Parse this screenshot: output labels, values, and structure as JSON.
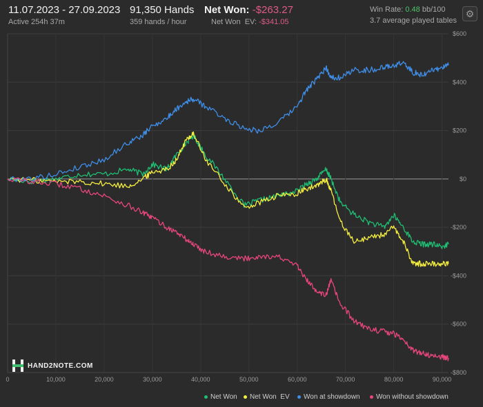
{
  "header": {
    "date_range": "11.07.2023 - 27.09.2023",
    "active_label": "Active 254h 37m",
    "hands": "91,350 Hands",
    "hands_per_hour": "359 hands / hour",
    "net_won_label": "Net Won:",
    "net_won_value": "-$263.27",
    "net_won_ev_label": "Net Won  EV:",
    "net_won_ev_value": "-$341.05",
    "win_rate_label": "Win Rate:",
    "win_rate_value": "0.48",
    "win_rate_unit": "bb/100",
    "avg_tables": "3.7 average played tables"
  },
  "icons": {
    "settings": "gear-icon",
    "logo": "hand2note-logo"
  },
  "logo_text": "HAND2NOTE.COM",
  "colors": {
    "net_won": "#1fbf73",
    "net_won_ev": "#f5ef3f",
    "won_showdown": "#3f8ee8",
    "won_without_showdown": "#e8467c",
    "negative": "#e05a8a",
    "positive": "#4fc36b"
  },
  "chart_data": {
    "type": "line",
    "xlabel": "",
    "ylabel": "",
    "xlim": [
      0,
      91350
    ],
    "ylim": [
      -800,
      600
    ],
    "x_ticks": [
      0,
      10000,
      20000,
      30000,
      40000,
      50000,
      60000,
      70000,
      80000,
      90000
    ],
    "x_tick_labels": [
      "0",
      "10,000",
      "20,000",
      "30,000",
      "40,000",
      "50,000",
      "60,000",
      "70,000",
      "80,000",
      "90,000"
    ],
    "y_ticks": [
      600,
      400,
      200,
      0,
      -200,
      -400,
      -600,
      -800
    ],
    "y_tick_labels": [
      "$600",
      "$400",
      "$200",
      "$0",
      "-$200",
      "-$400",
      "-$600",
      "-$800"
    ],
    "grid": true,
    "legend_position": "bottom-right",
    "series": [
      {
        "name": "Net Won",
        "color": "#1fbf73",
        "x": [
          0,
          5000,
          10000,
          15000,
          20000,
          25000,
          28000,
          30000,
          33000,
          35000,
          37000,
          38500,
          41000,
          45000,
          49000,
          52000,
          56000,
          60000,
          62000,
          64000,
          66000,
          67000,
          69000,
          72000,
          75000,
          78000,
          80000,
          82000,
          84000,
          86000,
          88000,
          90000,
          91350
        ],
        "y": [
          0,
          -10,
          0,
          20,
          20,
          40,
          20,
          60,
          40,
          100,
          150,
          180,
          100,
          0,
          -110,
          -90,
          -70,
          -50,
          -20,
          0,
          40,
          0,
          -100,
          -150,
          -180,
          -200,
          -150,
          -200,
          -260,
          -270,
          -270,
          -280,
          -270
        ]
      },
      {
        "name": "Net Won  EV",
        "color": "#f5ef3f",
        "x": [
          0,
          5000,
          10000,
          15000,
          20000,
          25000,
          28000,
          30000,
          33000,
          35000,
          37000,
          38500,
          41000,
          45000,
          49000,
          52000,
          56000,
          60000,
          62000,
          64000,
          66000,
          67000,
          69000,
          72000,
          75000,
          78000,
          80000,
          82000,
          84000,
          86000,
          88000,
          90000,
          91350
        ],
        "y": [
          0,
          -5,
          -10,
          -10,
          -20,
          -30,
          0,
          30,
          40,
          80,
          160,
          190,
          80,
          -20,
          -120,
          -100,
          -70,
          -60,
          -40,
          -30,
          0,
          -50,
          -180,
          -260,
          -240,
          -230,
          -200,
          -260,
          -350,
          -350,
          -350,
          -350,
          -350
        ]
      },
      {
        "name": "Won at showdown",
        "color": "#3f8ee8",
        "x": [
          0,
          5000,
          10000,
          15000,
          20000,
          25000,
          28000,
          30000,
          33000,
          35000,
          37000,
          38500,
          41000,
          45000,
          49000,
          52000,
          56000,
          60000,
          62000,
          64000,
          66000,
          67000,
          69000,
          72000,
          75000,
          78000,
          80000,
          82000,
          84000,
          86000,
          88000,
          90000,
          91350
        ],
        "y": [
          0,
          0,
          20,
          50,
          80,
          150,
          180,
          220,
          250,
          290,
          320,
          330,
          300,
          250,
          210,
          200,
          230,
          300,
          370,
          410,
          460,
          420,
          420,
          450,
          450,
          460,
          470,
          480,
          440,
          430,
          450,
          460,
          470
        ]
      },
      {
        "name": "Won without showdown",
        "color": "#e8467c",
        "x": [
          0,
          5000,
          10000,
          15000,
          20000,
          25000,
          28000,
          30000,
          33000,
          35000,
          37000,
          38500,
          41000,
          45000,
          49000,
          52000,
          56000,
          60000,
          62000,
          64000,
          66000,
          67000,
          69000,
          72000,
          75000,
          78000,
          80000,
          82000,
          84000,
          86000,
          88000,
          90000,
          91350
        ],
        "y": [
          0,
          -10,
          -20,
          -40,
          -70,
          -110,
          -140,
          -160,
          -200,
          -220,
          -250,
          -270,
          -300,
          -320,
          -330,
          -320,
          -320,
          -360,
          -420,
          -460,
          -480,
          -420,
          -520,
          -590,
          -620,
          -630,
          -640,
          -660,
          -710,
          -720,
          -730,
          -735,
          -740
        ]
      }
    ]
  }
}
